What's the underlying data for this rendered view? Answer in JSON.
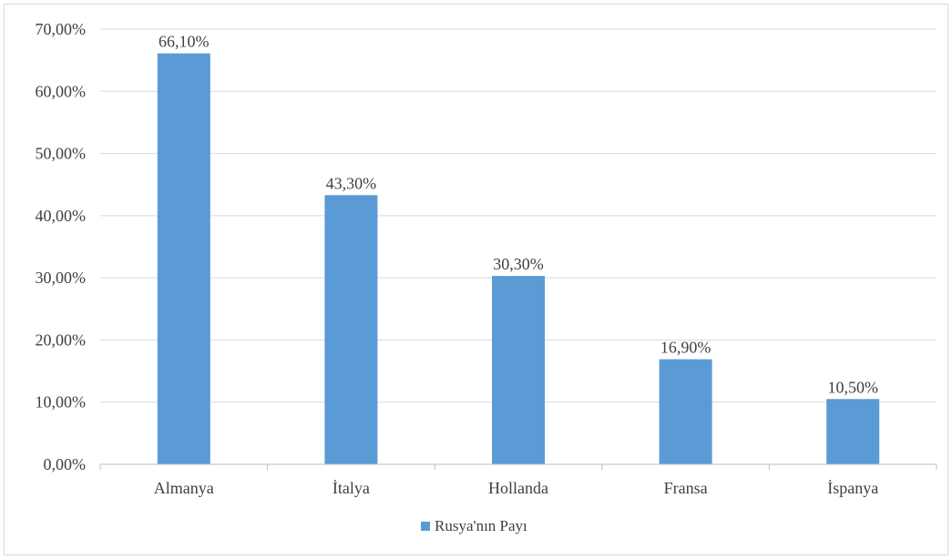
{
  "chart_data": {
    "type": "bar",
    "categories": [
      "Almanya",
      "İtalya",
      "Hollanda",
      "Fransa",
      "İspanya"
    ],
    "series": [
      {
        "name": "Rusya'nın Payı",
        "values": [
          66.1,
          43.3,
          30.3,
          16.9,
          10.5
        ]
      }
    ],
    "data_labels": [
      "66,10%",
      "43,30%",
      "30,30%",
      "16,90%",
      "10,50%"
    ],
    "y_ticks": [
      "0,00%",
      "10,00%",
      "20,00%",
      "30,00%",
      "40,00%",
      "50,00%",
      "60,00%",
      "70,00%"
    ],
    "ylim": [
      0,
      70
    ],
    "grid": true,
    "legend_position": "bottom",
    "title": "",
    "xlabel": "",
    "ylabel": "",
    "bar_color": "#5b9bd5",
    "grid_color": "#d9d9d9",
    "axis_color": "#bfbfbf"
  }
}
